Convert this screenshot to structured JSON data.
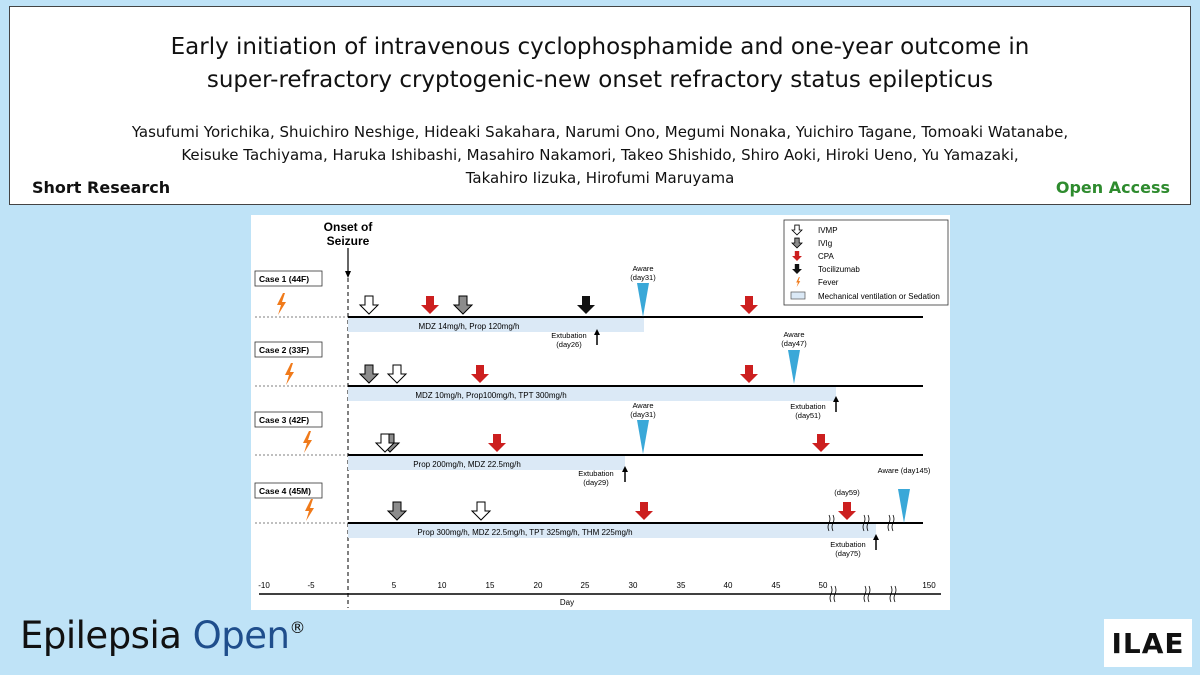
{
  "header": {
    "title_lines": [
      "Early initiation of intravenous cyclophosphamide and one-year outcome in",
      "super-refractory cryptogenic-new onset refractory status epilepticus"
    ],
    "authors_lines": [
      "Yasufumi Yorichika, Shuichiro Neshige, Hideaki Sakahara, Narumi Ono, Megumi Nonaka, Yuichiro Tagane, Tomoaki Watanabe,",
      "Keisuke Tachiyama, Haruka Ishibashi, Masahiro Nakamori, Takeo Shishido, Shiro Aoki, Hiroki Ueno, Yu Yamazaki,",
      "Takahiro Iizuka, Hirofumi Maruyama"
    ],
    "article_type": "Short Research",
    "access": "Open Access"
  },
  "figure": {
    "onset_label_line1": "Onset of",
    "onset_label_line2": "Seizure",
    "axis_label": "Day",
    "ticks": [
      "-10",
      "-5",
      "5",
      "10",
      "15",
      "20",
      "25",
      "30",
      "35",
      "40",
      "45",
      "50",
      "150"
    ],
    "legend": [
      {
        "key": "ivmp",
        "label": "IVMP"
      },
      {
        "key": "ivig",
        "label": "IVIg"
      },
      {
        "key": "cpa",
        "label": "CPA"
      },
      {
        "key": "tocilizumab",
        "label": "Tocilizumab"
      },
      {
        "key": "fever",
        "label": "Fever"
      },
      {
        "key": "ventilation",
        "label": "Mechanical ventilation or Sedation"
      }
    ],
    "colors": {
      "cpa": "#cc1f1f",
      "ivig": "#8c8c8c",
      "tocilizumab": "#111111",
      "aware": "#3aa8d8",
      "fever": "#f07a1a",
      "ventilation": "#dbe9f6"
    },
    "cases": [
      {
        "label": "Case 1 (44F)",
        "sedation": "MDZ 14mg/h, Prop 120mg/h",
        "extubation": "Extubation",
        "extubation_day": "(day26)",
        "aware": "Aware",
        "aware_day": "(day31)"
      },
      {
        "label": "Case 2 (33F)",
        "sedation": "MDZ 10mg/h, Prop100mg/h, TPT 300mg/h",
        "extubation": "Extubation",
        "extubation_day": "(day51)",
        "aware": "Aware",
        "aware_day": "(day47)"
      },
      {
        "label": "Case 3 (42F)",
        "sedation": "Prop 200mg/h, MDZ 22.5mg/h",
        "extubation": "Extubation",
        "extubation_day": "(day29)",
        "aware": "Aware",
        "aware_day": "(day31)"
      },
      {
        "label": "Case 4 (45M)",
        "sedation": "Prop 300mg/h, MDZ 22.5mg/h, TPT 325mg/h, THM 225mg/h",
        "extubation": "Extubation",
        "extubation_day": "(day75)",
        "aware": "Aware (day145)",
        "cpa_day": "(day59)"
      }
    ]
  },
  "footer": {
    "journal_part1": "Epilepsia",
    "journal_part2": "Open",
    "registered": "®",
    "logo_text": "ILAE"
  }
}
